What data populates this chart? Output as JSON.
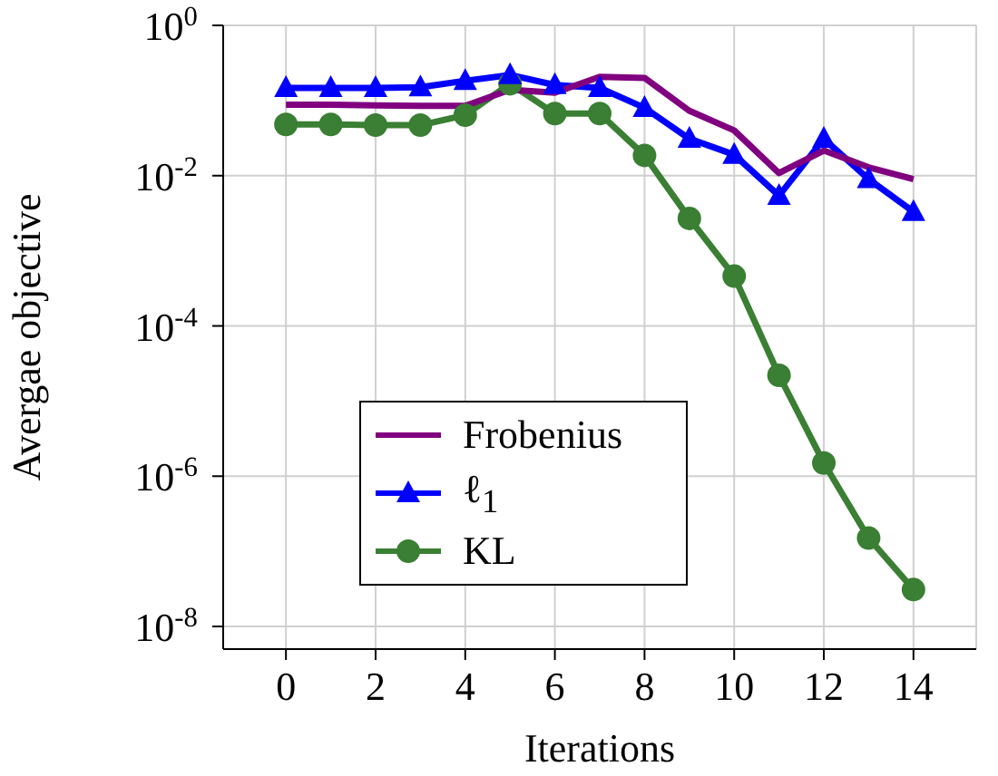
{
  "chart_data": {
    "type": "line",
    "xlabel": "Iterations",
    "ylabel": "Avergae objective",
    "x": [
      0,
      1,
      2,
      3,
      4,
      5,
      6,
      7,
      8,
      9,
      10,
      11,
      12,
      13,
      14
    ],
    "series": [
      {
        "name": "Frobenius",
        "color": "#800080",
        "marker": "none",
        "values": [
          0.088,
          0.088,
          0.086,
          0.085,
          0.085,
          0.139,
          0.127,
          0.207,
          0.2,
          0.073,
          0.04,
          0.0108,
          0.0216,
          0.0129,
          0.009
        ]
      },
      {
        "name": "ℓ$_{1}$",
        "color": "#0000ff",
        "marker": "triangle",
        "values": [
          0.147,
          0.147,
          0.147,
          0.15,
          0.183,
          0.219,
          0.161,
          0.147,
          0.08,
          0.031,
          0.019,
          0.0054,
          0.031,
          0.009,
          0.0033
        ]
      },
      {
        "name": "KL",
        "color": "#3a7f33",
        "marker": "circle",
        "values": [
          0.048,
          0.048,
          0.047,
          0.047,
          0.064,
          0.167,
          0.067,
          0.067,
          0.0186,
          0.0027,
          0.00046,
          2.2e-05,
          1.5e-06,
          1.5e-07,
          3.1e-08
        ]
      }
    ],
    "xlim": [
      -1.4,
      15.4
    ],
    "xticks": [
      0,
      2,
      4,
      6,
      8,
      10,
      12,
      14
    ],
    "ylim": [
      5e-09,
      1
    ],
    "yticks": [
      {
        "value": 1,
        "label": "10$^{0}$"
      },
      {
        "value": 0.01,
        "label": "10$^{-2}$"
      },
      {
        "value": 0.0001,
        "label": "10$^{-4}$"
      },
      {
        "value": 1e-06,
        "label": "10$^{-6}$"
      },
      {
        "value": 1e-08,
        "label": "10$^{-8}$"
      }
    ],
    "log": true,
    "grid": true,
    "legend": "bottom left",
    "line_style": "solid"
  }
}
